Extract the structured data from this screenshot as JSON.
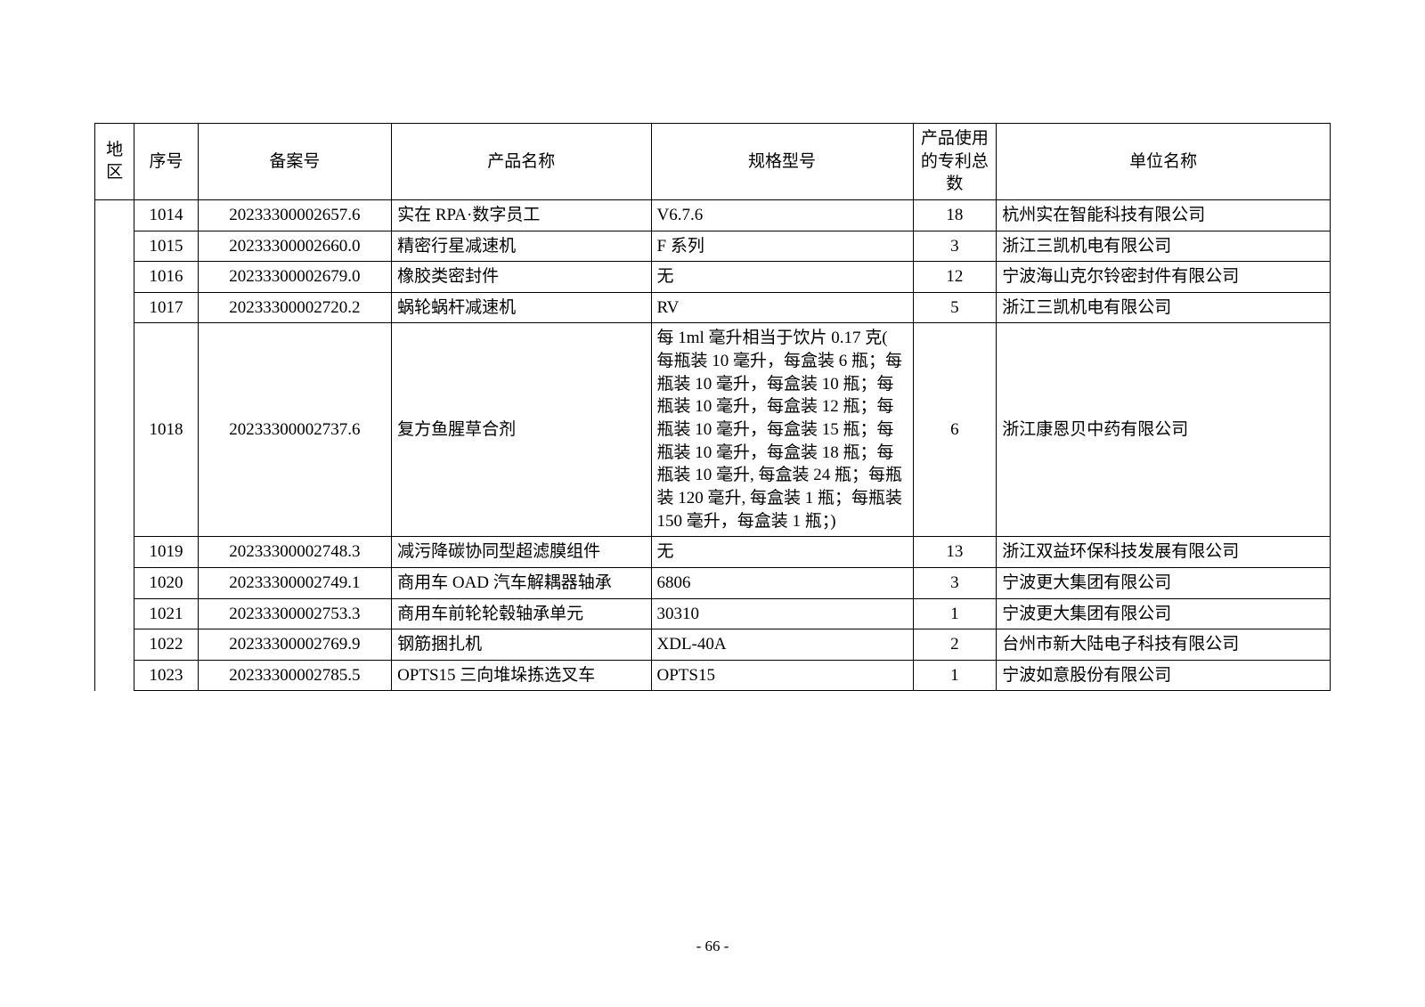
{
  "header": {
    "region": "地区",
    "seq": "序号",
    "filing": "备案号",
    "product": "产品名称",
    "spec": "规格型号",
    "patents": "产品使用的专利总数",
    "company": "单位名称"
  },
  "rows": [
    {
      "seq": "1014",
      "filing": "20233300002657.6",
      "product": "实在 RPA·数字员工",
      "spec": "V6.7.6",
      "patents": "18",
      "company": "杭州实在智能科技有限公司"
    },
    {
      "seq": "1015",
      "filing": "20233300002660.0",
      "product": "精密行星减速机",
      "spec": "F 系列",
      "patents": "3",
      "company": "浙江三凯机电有限公司"
    },
    {
      "seq": "1016",
      "filing": "20233300002679.0",
      "product": "橡胶类密封件",
      "spec": "无",
      "patents": "12",
      "company": "宁波海山克尔铃密封件有限公司"
    },
    {
      "seq": "1017",
      "filing": "20233300002720.2",
      "product": "蜗轮蜗杆减速机",
      "spec": "RV",
      "patents": "5",
      "company": "浙江三凯机电有限公司"
    },
    {
      "seq": "1018",
      "filing": "20233300002737.6",
      "product": "复方鱼腥草合剂",
      "spec": "每 1ml 毫升相当于饮片 0.17 克( 每瓶装 10 毫升，每盒装 6 瓶；每瓶装 10 毫升，每盒装 10 瓶；每瓶装 10 毫升，每盒装 12 瓶；每瓶装 10 毫升，每盒装 15 瓶；每瓶装 10 毫升，每盒装 18 瓶；每瓶装 10 毫升, 每盒装 24 瓶；每瓶装 120 毫升, 每盒装 1 瓶；每瓶装 150 毫升，每盒装 1 瓶；)",
      "patents": "6",
      "company": "浙江康恩贝中药有限公司"
    },
    {
      "seq": "1019",
      "filing": "20233300002748.3",
      "product": "减污降碳协同型超滤膜组件",
      "spec": "无",
      "patents": "13",
      "company": "浙江双益环保科技发展有限公司"
    },
    {
      "seq": "1020",
      "filing": "20233300002749.1",
      "product": "商用车 OAD 汽车解耦器轴承",
      "spec": "6806",
      "patents": "3",
      "company": "宁波更大集团有限公司"
    },
    {
      "seq": "1021",
      "filing": "20233300002753.3",
      "product": "商用车前轮轮毂轴承单元",
      "spec": "30310",
      "patents": "1",
      "company": "宁波更大集团有限公司"
    },
    {
      "seq": "1022",
      "filing": "20233300002769.9",
      "product": "钢筋捆扎机",
      "spec": "XDL-40A",
      "patents": "2",
      "company": "台州市新大陆电子科技有限公司"
    },
    {
      "seq": "1023",
      "filing": "20233300002785.5",
      "product": "OPTS15 三向堆垛拣选叉车",
      "spec": "OPTS15",
      "patents": "1",
      "company": "宁波如意股份有限公司"
    }
  ],
  "pageNumber": "- 66 -"
}
